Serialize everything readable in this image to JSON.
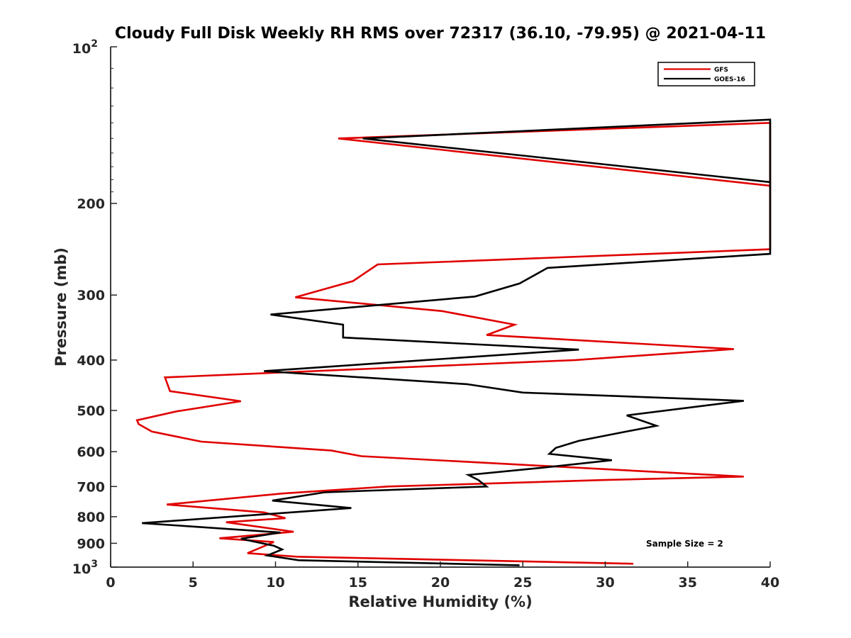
{
  "chart_data": {
    "type": "line",
    "title": "Cloudy Full Disk Weekly RH RMS over 72317 (36.10, -79.95) @ 2021-04-11",
    "xlabel": "Relative Humidity (%)",
    "ylabel": "Pressure (mb)",
    "xlim": [
      0,
      40
    ],
    "ylim": [
      100,
      1000
    ],
    "y_scale": "log",
    "y_reversed": true,
    "x_ticks": [
      "0",
      "5",
      "10",
      "15",
      "20",
      "25",
      "30",
      "35",
      "40"
    ],
    "y_ticks": [
      {
        "value": 100,
        "base": "10",
        "exp": "2"
      },
      {
        "value": 200,
        "label": "200"
      },
      {
        "value": 300,
        "label": "300"
      },
      {
        "value": 400,
        "label": "400"
      },
      {
        "value": 500,
        "label": "500"
      },
      {
        "value": 600,
        "label": "600"
      },
      {
        "value": 700,
        "label": "700"
      },
      {
        "value": 800,
        "label": "800"
      },
      {
        "value": 900,
        "label": "900"
      },
      {
        "value": 1000,
        "base": "10",
        "exp": "3"
      }
    ],
    "legend_position": "top-right",
    "annotation": "Sample Size = 2",
    "series": [
      {
        "name": "GFS",
        "color": "#e00000",
        "points": [
          [
            40,
            185
          ],
          [
            13.8,
            150
          ],
          [
            40,
            140
          ],
          [
            40,
            245
          ],
          [
            16.2,
            262
          ],
          [
            14.7,
            282
          ],
          [
            11.2,
            303
          ],
          [
            20.1,
            322
          ],
          [
            24.5,
            342
          ],
          [
            22.8,
            358
          ],
          [
            37.8,
            381
          ],
          [
            28.2,
            400
          ],
          [
            3.3,
            432
          ],
          [
            3.6,
            459
          ],
          [
            7.9,
            480
          ],
          [
            4,
            502
          ],
          [
            1.6,
            522
          ],
          [
            1.7,
            531
          ],
          [
            2.5,
            549
          ],
          [
            5.5,
            574
          ],
          [
            13.4,
            597
          ],
          [
            15.2,
            612
          ],
          [
            38.4,
            670
          ],
          [
            30,
            680
          ],
          [
            16.8,
            700
          ],
          [
            10.4,
            722
          ],
          [
            3.4,
            758
          ],
          [
            9.3,
            785
          ],
          [
            10.6,
            805
          ],
          [
            7,
            820
          ],
          [
            11.1,
            855
          ],
          [
            6.6,
            880
          ],
          [
            9.9,
            895
          ],
          [
            8.3,
            940
          ],
          [
            11.3,
            955
          ],
          [
            31.7,
            985
          ]
        ]
      },
      {
        "name": "GOES-16",
        "color": "#000000",
        "points": [
          [
            40,
            182
          ],
          [
            15.3,
            150
          ],
          [
            40,
            138
          ],
          [
            40,
            250
          ],
          [
            26.5,
            266
          ],
          [
            24.8,
            285
          ],
          [
            22.1,
            302
          ],
          [
            9.7,
            327
          ],
          [
            14.1,
            342
          ],
          [
            14.1,
            362
          ],
          [
            28.4,
            382
          ],
          [
            9.3,
            420
          ],
          [
            21.6,
            445
          ],
          [
            25,
            462
          ],
          [
            38.4,
            479
          ],
          [
            31.3,
            511
          ],
          [
            33.1,
            535
          ],
          [
            31,
            551
          ],
          [
            28.4,
            572
          ],
          [
            27,
            590
          ],
          [
            26.6,
            606
          ],
          [
            30.4,
            623
          ],
          [
            26,
            645
          ],
          [
            21.7,
            665
          ],
          [
            22.3,
            680
          ],
          [
            22.8,
            700
          ],
          [
            13,
            718
          ],
          [
            9.8,
            745
          ],
          [
            14.6,
            770
          ],
          [
            1.9,
            823
          ],
          [
            10.3,
            858
          ],
          [
            7.9,
            882
          ],
          [
            9.9,
            910
          ],
          [
            10.4,
            925
          ],
          [
            9.5,
            950
          ],
          [
            11.4,
            970
          ],
          [
            24.8,
            992
          ]
        ]
      }
    ]
  }
}
